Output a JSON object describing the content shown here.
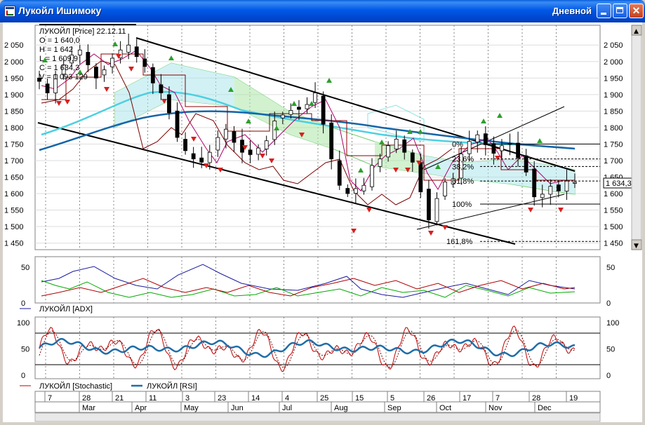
{
  "window": {
    "title": "Лукойл Ишимоку",
    "timeframe": "Дневной"
  },
  "legend": {
    "main_title": "ЛУКОЙЛ [Price] 22.12.11",
    "lines": [
      "O = 1 640,0",
      "H = 1 642",
      "L = 1 609,9",
      "C = 1 634,3",
      "V = 1 093 129"
    ]
  },
  "colors": {
    "candle_body_up": "#ffffff",
    "candle_body_down": "#000000",
    "ichimoku_cloud_green": "#33cc33",
    "ichimoku_cloud_cyan": "#33cccc",
    "ma_fast": "#4dd0e1",
    "ma_slow": "#1565a8",
    "tenkan": "#b0006b",
    "kijun": "#8b0000",
    "adx": "#1a1aa0",
    "plus_di": "#00aa00",
    "minus_di": "#b00000",
    "stochastic": "#c00000",
    "rsi": "#1f6ea8",
    "fractal_up": "#2ca02c",
    "fractal_down": "#d62020"
  },
  "chart_data": [
    {
      "type": "line",
      "panel": "price",
      "ylim": [
        1430,
        2110
      ],
      "yticks": [
        2050,
        2000,
        1950,
        1900,
        1850,
        1800,
        1750,
        1700,
        1650,
        1600,
        1550,
        1500,
        1450
      ],
      "ytick_labels": [
        "2 050",
        "2 000",
        "1 950",
        "1 900",
        "1 850",
        "1 800",
        "1 750",
        "1 700",
        "1 650",
        "1 600",
        "1 550",
        "1 500",
        "1 450"
      ],
      "last_price_label": "1 634,3",
      "fib_levels": [
        {
          "label": "0%",
          "value": 1750
        },
        {
          "label": "23,6%",
          "value": 1705
        },
        {
          "label": "38,2%",
          "value": 1682
        },
        {
          "label": "61,8%",
          "value": 1638
        },
        {
          "label": "100%",
          "value": 1568
        },
        {
          "label": "161,8%",
          "value": 1455
        }
      ],
      "close_series_approx": [
        1940,
        1905,
        1960,
        1990,
        2020,
        2035,
        1990,
        1950,
        1975,
        2010,
        2035,
        2050,
        2015,
        1985,
        1935,
        1905,
        1845,
        1770,
        1730,
        1705,
        1695,
        1725,
        1770,
        1795,
        1755,
        1725,
        1718,
        1738,
        1760,
        1820,
        1838,
        1852,
        1855,
        1870,
        1905,
        1810,
        1705,
        1625,
        1600,
        1615,
        1625,
        1685,
        1705,
        1745,
        1765,
        1725,
        1695,
        1605,
        1520,
        1585,
        1635,
        1645,
        1720,
        1758,
        1778,
        1748,
        1722,
        1745,
        1752,
        1708,
        1665,
        1590,
        1598,
        1622,
        1608,
        1638,
        1634
      ]
    },
    {
      "type": "line",
      "panel": "adx",
      "ylim": [
        0,
        65
      ],
      "yticks": [
        50,
        0
      ],
      "series": [
        {
          "name": "ЛУКОЙЛ [ADX]"
        }
      ]
    },
    {
      "type": "line",
      "panel": "oscillators",
      "ylim": [
        0,
        100
      ],
      "yticks": [
        100,
        50,
        0
      ],
      "levels": [
        80,
        20
      ],
      "series": [
        {
          "name": "ЛУКОЙЛ [Stochastic]"
        },
        {
          "name": "ЛУКОЙЛ [RSI]"
        }
      ]
    }
  ],
  "x_axis": {
    "day_labels": [
      "7",
      "28",
      "21",
      "11",
      "3",
      "23",
      "14",
      "4",
      "25",
      "15",
      "5",
      "26",
      "17",
      "7",
      "28",
      "19"
    ],
    "month_labels": [
      "Mar",
      "Apr",
      "May",
      "Jun",
      "Jul",
      "Aug",
      "Sep",
      "Oct",
      "Nov",
      "Dec"
    ]
  },
  "scrollbar": {
    "up_arrow": "▲",
    "down_arrow": "▼"
  }
}
